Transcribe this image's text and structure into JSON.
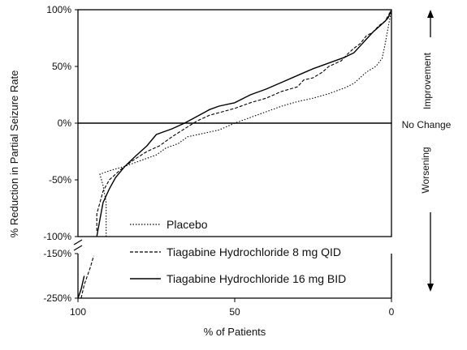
{
  "chart_data": {
    "type": "line",
    "title": "",
    "xlabel": "% of Patients",
    "ylabel": "% Reduction in Partial Seizure Rate",
    "x_ticks": [
      "100",
      "50",
      "0"
    ],
    "y_ticks_upper": [
      "100%",
      "50%",
      "0%",
      "-50%",
      "-100%"
    ],
    "y_ticks_lower": [
      "-150%",
      "-250%"
    ],
    "xlim": [
      100,
      0
    ],
    "ylim_upper": [
      -100,
      100
    ],
    "ylim_lower": [
      -250,
      -150
    ],
    "annotations": {
      "improvement": "Improvement",
      "no_change": "No Change",
      "worsening": "Worsening"
    },
    "legend_position": "bottom-center",
    "series": [
      {
        "name": "Placebo",
        "style": "dotted",
        "points": [
          [
            91,
            -100
          ],
          [
            91,
            -70
          ],
          [
            92,
            -55
          ],
          [
            93,
            -45
          ],
          [
            90,
            -42
          ],
          [
            85,
            -38
          ],
          [
            80,
            -33
          ],
          [
            75,
            -28
          ],
          [
            72,
            -22
          ],
          [
            68,
            -18
          ],
          [
            65,
            -12
          ],
          [
            60,
            -9
          ],
          [
            55,
            -6
          ],
          [
            50,
            0
          ],
          [
            45,
            5
          ],
          [
            40,
            10
          ],
          [
            35,
            15
          ],
          [
            30,
            19
          ],
          [
            25,
            22
          ],
          [
            20,
            26
          ],
          [
            15,
            31
          ],
          [
            12,
            35
          ],
          [
            10,
            40
          ],
          [
            8,
            45
          ],
          [
            5,
            50
          ],
          [
            3,
            57
          ],
          [
            2,
            70
          ],
          [
            1,
            85
          ],
          [
            0,
            100
          ]
        ],
        "points_lower": []
      },
      {
        "name": "Tiagabine Hydrochloride 8 mg QID",
        "style": "dashed",
        "points": [
          [
            94,
            -95
          ],
          [
            94,
            -80
          ],
          [
            92,
            -60
          ],
          [
            90,
            -50
          ],
          [
            86,
            -40
          ],
          [
            82,
            -32
          ],
          [
            78,
            -25
          ],
          [
            74,
            -20
          ],
          [
            70,
            -12
          ],
          [
            66,
            -5
          ],
          [
            62,
            2
          ],
          [
            58,
            7
          ],
          [
            54,
            10
          ],
          [
            50,
            13
          ],
          [
            45,
            18
          ],
          [
            40,
            22
          ],
          [
            35,
            28
          ],
          [
            30,
            32
          ],
          [
            28,
            38
          ],
          [
            25,
            40
          ],
          [
            22,
            45
          ],
          [
            20,
            50
          ],
          [
            16,
            55
          ],
          [
            14,
            61
          ],
          [
            12,
            66
          ],
          [
            10,
            70
          ],
          [
            8,
            77
          ],
          [
            6,
            80
          ],
          [
            4,
            86
          ],
          [
            2,
            90
          ],
          [
            1,
            95
          ],
          [
            0,
            100
          ]
        ],
        "points_lower": [
          [
            99,
            -250
          ],
          [
            98,
            -220
          ],
          [
            96,
            -180
          ],
          [
            95,
            -155
          ]
        ]
      },
      {
        "name": "Tiagabine Hydrochloride 16 mg BID",
        "style": "solid",
        "points": [
          [
            94,
            -100
          ],
          [
            93,
            -85
          ],
          [
            92,
            -70
          ],
          [
            90,
            -58
          ],
          [
            88,
            -48
          ],
          [
            85,
            -38
          ],
          [
            82,
            -30
          ],
          [
            78,
            -20
          ],
          [
            75,
            -10
          ],
          [
            70,
            -5
          ],
          [
            66,
            0
          ],
          [
            62,
            6
          ],
          [
            58,
            12
          ],
          [
            55,
            15
          ],
          [
            50,
            18
          ],
          [
            45,
            25
          ],
          [
            40,
            30
          ],
          [
            35,
            36
          ],
          [
            30,
            42
          ],
          [
            25,
            48
          ],
          [
            20,
            53
          ],
          [
            15,
            58
          ],
          [
            12,
            62
          ],
          [
            10,
            68
          ],
          [
            8,
            74
          ],
          [
            6,
            80
          ],
          [
            4,
            85
          ],
          [
            2,
            90
          ],
          [
            1,
            93
          ],
          [
            0,
            100
          ]
        ],
        "points_lower": [
          [
            100,
            -250
          ],
          [
            99,
            -230
          ],
          [
            98,
            -200
          ]
        ]
      }
    ]
  }
}
